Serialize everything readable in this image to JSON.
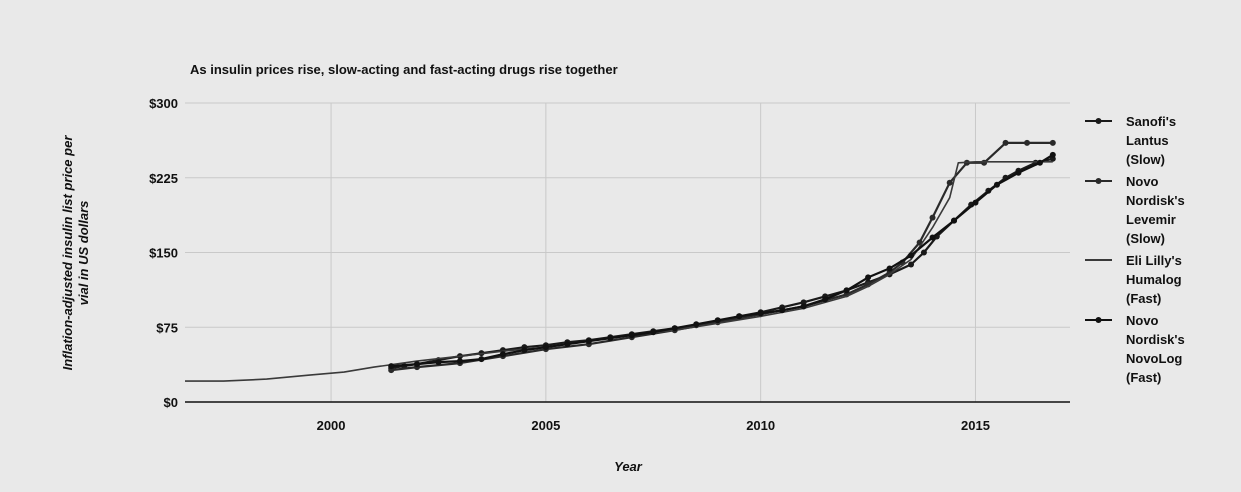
{
  "chart_data": {
    "type": "line",
    "title": "As insulin prices rise, slow-acting and fast-acting drugs rise together",
    "xlabel": "Year",
    "ylabel": "Inflation-adjusted insulin list price per vial in US dollars",
    "xlim": [
      1996.6,
      2017.2
    ],
    "ylim": [
      0,
      300
    ],
    "y_ticks": [
      0,
      75,
      150,
      225,
      300
    ],
    "y_tick_labels": [
      "$0",
      "$75",
      "$150",
      "$225",
      "$300"
    ],
    "x_ticks": [
      2000,
      2005,
      2010,
      2015
    ],
    "x_tick_labels": [
      "2000",
      "2005",
      "2010",
      "2015"
    ],
    "grid": true,
    "legend_position": "right",
    "series": [
      {
        "name": "Sanofi's Lantus (Slow)",
        "color": "#1a1a1a",
        "marker": true,
        "x": [
          2001.4,
          2001.7,
          2002.0,
          2002.5,
          2003.0,
          2003.5,
          2004.0,
          2004.5,
          2005.0,
          2005.5,
          2006.0,
          2006.5,
          2007.0,
          2007.5,
          2008.0,
          2008.5,
          2009.0,
          2009.5,
          2010.0,
          2010.5,
          2011.0,
          2011.5,
          2012.0,
          2012.5,
          2013.0,
          2013.5,
          2013.8,
          2014.1,
          2014.5,
          2014.9,
          2015.3,
          2015.7,
          2016.0,
          2016.4,
          2016.8
        ],
        "values": [
          34,
          36,
          38,
          42,
          46,
          49,
          52,
          55,
          57,
          60,
          62,
          65,
          68,
          71,
          74,
          77,
          81,
          86,
          90,
          95,
          100,
          106,
          112,
          120,
          128,
          138,
          150,
          166,
          182,
          198,
          212,
          225,
          232,
          240,
          244
        ]
      },
      {
        "name": "Novo Nordisk's Levemir (Slow)",
        "color": "#2a2a2a",
        "marker": true,
        "x": [
          2001.4,
          2002.0,
          2003.0,
          2004.0,
          2005.0,
          2006.0,
          2007.0,
          2008.0,
          2009.0,
          2010.0,
          2011.0,
          2012.0,
          2012.5,
          2013.0,
          2013.3,
          2013.7,
          2014.0,
          2014.4,
          2014.8,
          2015.2,
          2015.7,
          2016.2,
          2016.8
        ],
        "values": [
          32,
          35,
          39,
          46,
          53,
          58,
          65,
          72,
          80,
          88,
          96,
          108,
          118,
          130,
          140,
          160,
          185,
          220,
          240,
          240,
          260,
          260,
          260
        ]
      },
      {
        "name": "Eli Lilly's Humalog (Fast)",
        "color": "#3a3a3a",
        "marker": false,
        "x": [
          1996.6,
          1997.5,
          1998.5,
          1999.5,
          2000.3,
          2001.0,
          2002.0,
          2003.0,
          2004.0,
          2005.0,
          2006.0,
          2007.0,
          2008.0,
          2009.0,
          2010.0,
          2011.0,
          2012.0,
          2012.5,
          2013.0,
          2013.5,
          2014.0,
          2014.4,
          2014.6,
          2015.0,
          2015.5,
          2016.0,
          2016.5,
          2016.8
        ],
        "values": [
          21,
          21,
          23,
          27,
          30,
          35,
          41,
          46,
          51,
          55,
          61,
          67,
          72,
          79,
          86,
          94,
          106,
          116,
          128,
          143,
          175,
          205,
          240,
          241,
          241,
          241,
          241,
          241
        ]
      },
      {
        "name": "Novo Nordisk's NovoLog (Fast)",
        "color": "#111111",
        "marker": true,
        "x": [
          2001.4,
          2002.0,
          2002.5,
          2003.0,
          2003.5,
          2004.0,
          2004.5,
          2005.0,
          2005.5,
          2006.0,
          2006.5,
          2007.0,
          2007.5,
          2008.0,
          2008.5,
          2009.0,
          2009.5,
          2010.0,
          2010.5,
          2011.0,
          2011.5,
          2012.0,
          2012.5,
          2013.0,
          2013.5,
          2014.0,
          2014.5,
          2015.0,
          2015.5,
          2016.0,
          2016.5,
          2016.8
        ],
        "values": [
          36,
          38,
          40,
          41,
          43,
          48,
          52,
          55,
          58,
          61,
          64,
          67,
          70,
          74,
          78,
          82,
          86,
          89,
          92,
          96,
          103,
          112,
          125,
          134,
          147,
          165,
          182,
          200,
          218,
          230,
          240,
          248
        ]
      }
    ]
  }
}
